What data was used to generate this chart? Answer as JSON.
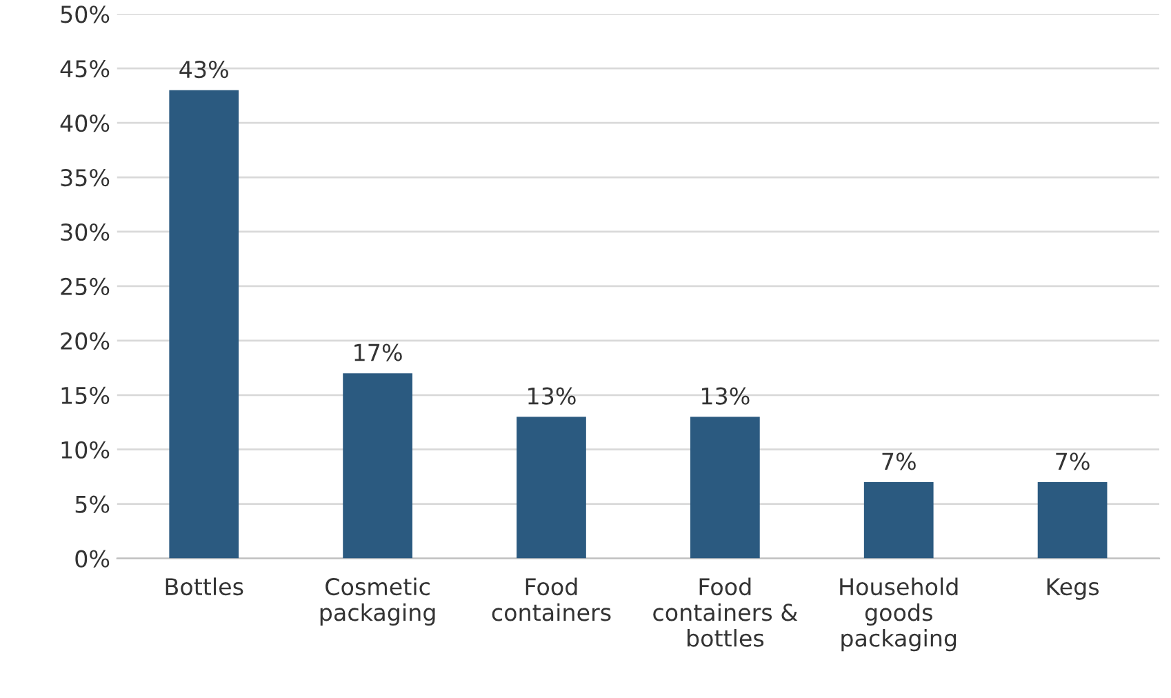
{
  "chart_data": {
    "type": "bar",
    "categories": [
      "Bottles",
      "Cosmetic\npackaging",
      "Food\ncontainers",
      "Food\ncontainers &\nbottles",
      "Household\ngoods\npackaging",
      "Kegs"
    ],
    "values": [
      43,
      17,
      13,
      13,
      7,
      7
    ],
    "value_labels": [
      "43%",
      "17%",
      "13%",
      "13%",
      "7%",
      "7%"
    ],
    "color": "#2b5a80",
    "ylim": [
      0,
      50
    ],
    "yticks": [
      {
        "value": 0,
        "label": "0%"
      },
      {
        "value": 5,
        "label": "5%"
      },
      {
        "value": 10,
        "label": "10%"
      },
      {
        "value": 15,
        "label": "15%"
      },
      {
        "value": 20,
        "label": "20%"
      },
      {
        "value": 25,
        "label": "25%"
      },
      {
        "value": 30,
        "label": "30%"
      },
      {
        "value": 35,
        "label": "35%"
      },
      {
        "value": 40,
        "label": "40%"
      },
      {
        "value": 45,
        "label": "45%"
      },
      {
        "value": 50,
        "label": "50%"
      }
    ],
    "grid": "y"
  }
}
